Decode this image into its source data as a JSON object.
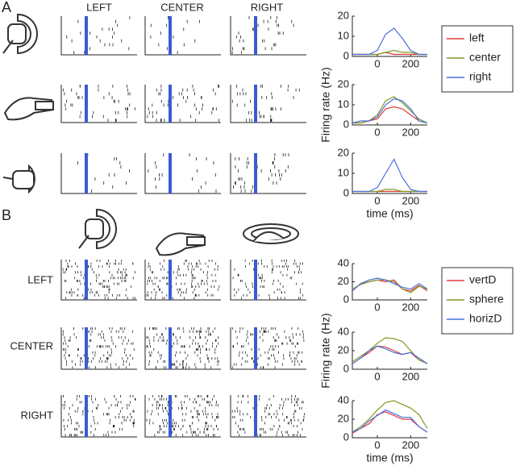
{
  "figure": {
    "panel_labels": [
      "A",
      "B"
    ],
    "columns_a": [
      "LEFT",
      "CENTER",
      "RIGHT"
    ],
    "rows_b": [
      "LEFT",
      "CENTER",
      "RIGHT"
    ]
  },
  "chart_data": [
    {
      "type": "line",
      "x": [
        -150,
        -100,
        -50,
        0,
        50,
        100,
        150,
        200,
        250,
        300
      ],
      "xlim": [
        -150,
        300
      ],
      "xticks": [
        0,
        200
      ],
      "ylim": [
        0,
        20
      ],
      "yticks": [
        0,
        10,
        20
      ],
      "legend": "right",
      "series": [
        {
          "name": "left",
          "color": "#e03a3a",
          "values": [
            1,
            1,
            1,
            1,
            2,
            1,
            1,
            1,
            1,
            1
          ]
        },
        {
          "name": "center",
          "color": "#7f9a20",
          "values": [
            1,
            1,
            1,
            1,
            2,
            3,
            2,
            2,
            1,
            1
          ]
        },
        {
          "name": "right",
          "color": "#4a6fe0",
          "values": [
            1,
            1,
            1,
            3,
            11,
            14,
            9,
            3,
            1,
            1
          ]
        }
      ]
    },
    {
      "type": "line",
      "x": [
        -150,
        -100,
        -50,
        0,
        50,
        100,
        150,
        200,
        250,
        300
      ],
      "xlim": [
        -150,
        300
      ],
      "xticks": [
        0,
        200
      ],
      "ylim": [
        0,
        20
      ],
      "yticks": [
        0,
        10,
        20
      ],
      "ylabel": "Firing rate (Hz)",
      "series": [
        {
          "color": "#e03a3a",
          "values": [
            1,
            1,
            2,
            3,
            8,
            9,
            8,
            5,
            2,
            1
          ]
        },
        {
          "color": "#7f9a20",
          "values": [
            1,
            1,
            2,
            5,
            12,
            14,
            11,
            7,
            3,
            1
          ]
        },
        {
          "color": "#4a6fe0",
          "values": [
            1,
            2,
            2,
            4,
            10,
            13,
            12,
            8,
            2,
            1
          ]
        }
      ]
    },
    {
      "type": "line",
      "x": [
        -150,
        -100,
        -50,
        0,
        50,
        100,
        150,
        200,
        250,
        300
      ],
      "xlim": [
        -150,
        300
      ],
      "xticks": [
        0,
        200
      ],
      "ylim": [
        0,
        20
      ],
      "yticks": [
        0,
        10,
        20
      ],
      "xlabel": "time (ms)",
      "series": [
        {
          "color": "#e03a3a",
          "values": [
            1,
            1,
            1,
            1,
            1,
            1,
            1,
            1,
            1,
            1
          ]
        },
        {
          "color": "#7f9a20",
          "values": [
            1,
            1,
            1,
            1,
            2,
            2,
            1,
            1,
            1,
            1
          ]
        },
        {
          "color": "#4a6fe0",
          "values": [
            1,
            1,
            1,
            3,
            10,
            17,
            8,
            2,
            1,
            1
          ]
        }
      ]
    },
    {
      "type": "line",
      "x": [
        -150,
        -100,
        -50,
        0,
        50,
        100,
        150,
        200,
        250,
        300
      ],
      "xlim": [
        -150,
        300
      ],
      "xticks": [
        0,
        200
      ],
      "ylim": [
        0,
        40
      ],
      "yticks": [
        0,
        20,
        40
      ],
      "legend": "right",
      "series": [
        {
          "name": "vertD",
          "color": "#e03a3a",
          "values": [
            10,
            18,
            20,
            22,
            20,
            22,
            12,
            10,
            16,
            10
          ]
        },
        {
          "name": "sphere",
          "color": "#7f9a20",
          "values": [
            12,
            17,
            20,
            22,
            22,
            20,
            12,
            8,
            15,
            12
          ]
        },
        {
          "name": "horizD",
          "color": "#4a6fe0",
          "values": [
            10,
            18,
            22,
            24,
            22,
            18,
            14,
            12,
            18,
            12
          ]
        }
      ]
    },
    {
      "type": "line",
      "x": [
        -150,
        -100,
        -50,
        0,
        50,
        100,
        150,
        200,
        250,
        300
      ],
      "xlim": [
        -150,
        300
      ],
      "xticks": [
        0,
        200
      ],
      "ylim": [
        0,
        40
      ],
      "yticks": [
        0,
        20,
        40
      ],
      "ylabel": "Firing rate (Hz)",
      "series": [
        {
          "color": "#e03a3a",
          "values": [
            6,
            12,
            18,
            25,
            24,
            20,
            16,
            18,
            10,
            6
          ]
        },
        {
          "color": "#7f9a20",
          "values": [
            8,
            14,
            20,
            28,
            34,
            33,
            30,
            20,
            10,
            6
          ]
        },
        {
          "color": "#4a6fe0",
          "values": [
            6,
            12,
            20,
            25,
            22,
            18,
            16,
            18,
            12,
            6
          ]
        }
      ]
    },
    {
      "type": "line",
      "x": [
        -150,
        -100,
        -50,
        0,
        50,
        100,
        150,
        200,
        250,
        300
      ],
      "xlim": [
        -150,
        300
      ],
      "xticks": [
        0,
        200
      ],
      "ylim": [
        0,
        40
      ],
      "yticks": [
        0,
        20,
        40
      ],
      "xlabel": "time (ms)",
      "series": [
        {
          "color": "#e03a3a",
          "values": [
            5,
            10,
            15,
            25,
            28,
            24,
            20,
            20,
            12,
            6
          ]
        },
        {
          "color": "#7f9a20",
          "values": [
            6,
            12,
            20,
            30,
            38,
            40,
            36,
            32,
            25,
            10
          ]
        },
        {
          "color": "#4a6fe0",
          "values": [
            6,
            10,
            18,
            24,
            30,
            26,
            22,
            22,
            12,
            6
          ]
        }
      ]
    }
  ]
}
